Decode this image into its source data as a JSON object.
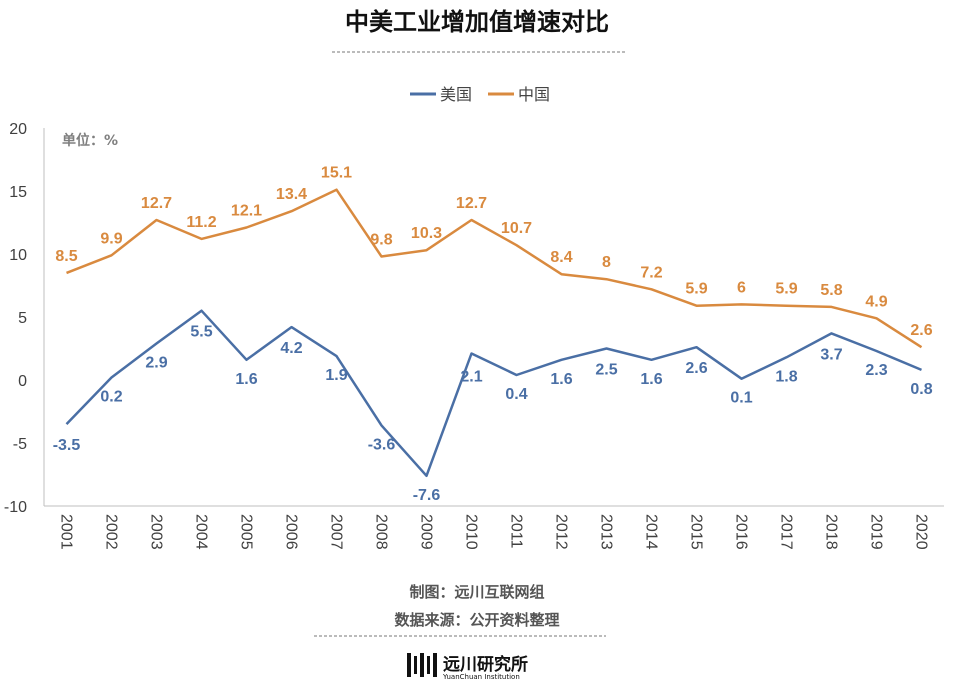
{
  "chart_data": {
    "type": "line",
    "title": "中美工业增加值增速对比",
    "unit_label": "单位：%",
    "categories": [
      "2001",
      "2002",
      "2003",
      "2004",
      "2005",
      "2006",
      "2007",
      "2008",
      "2009",
      "2010",
      "2011",
      "2012",
      "2013",
      "2014",
      "2015",
      "2016",
      "2017",
      "2018",
      "2019",
      "2020"
    ],
    "series": [
      {
        "name": "美国",
        "color": "#4a6fa5",
        "values": [
          -3.5,
          0.2,
          2.9,
          5.5,
          1.6,
          4.2,
          1.9,
          -3.6,
          -7.6,
          2.1,
          0.4,
          1.6,
          2.5,
          1.6,
          2.6,
          0.1,
          1.8,
          3.7,
          2.3,
          0.8
        ]
      },
      {
        "name": "中国",
        "color": "#d98a3f",
        "values": [
          8.5,
          9.9,
          12.7,
          11.2,
          12.1,
          13.4,
          15.1,
          9.8,
          10.3,
          12.7,
          10.7,
          8.4,
          8,
          7.2,
          5.9,
          6,
          5.9,
          5.8,
          4.9,
          2.6
        ]
      }
    ],
    "ylim": [
      -10,
      20
    ],
    "yticks": [
      "-10",
      "-5",
      "0",
      "5",
      "10",
      "15",
      "20"
    ],
    "legend_position": "top-center",
    "grid": false
  },
  "footer": {
    "made_by": "制图：远川互联网组",
    "source": "数据来源：公开资料整理"
  },
  "brand": {
    "name_cn": "远川研究所",
    "name_en": "YuanChuan Institution"
  }
}
